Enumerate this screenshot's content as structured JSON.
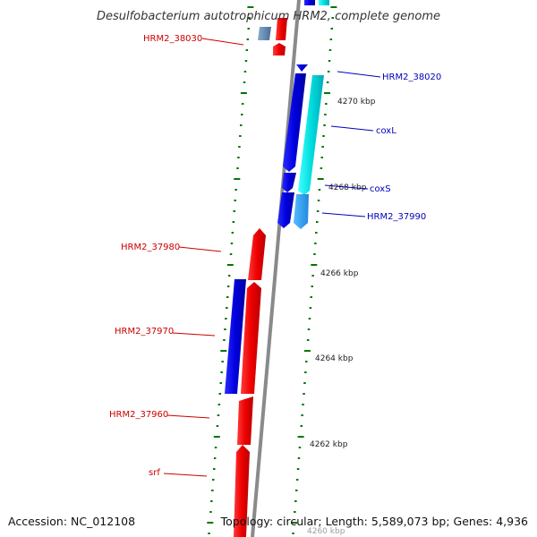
{
  "title": "Desulfobacterium autotrophicum HRM2, complete genome",
  "footer": {
    "accession": "Accession: NC_012108",
    "summary": "Topology: circular; Length: 5,589,073 bp; Genes: 4,936"
  },
  "colors": {
    "reverse_strand": "#ee0000",
    "forward_strand": "#0000dd",
    "forward_alt": "#00dddd",
    "label_reverse": "#cc0000",
    "label_forward": "#0000bb",
    "backbone": "#8a8a8a",
    "tick": "#007700"
  },
  "ticks": [
    {
      "label": "4270 kbp"
    },
    {
      "label": "4268 kbp"
    },
    {
      "label": "4266 kbp"
    },
    {
      "label": "4264 kbp"
    },
    {
      "label": "4262 kbp"
    },
    {
      "label": "4260 kbp"
    }
  ],
  "gene_labels": [
    {
      "text": "HRM2_38030",
      "strand": "reverse"
    },
    {
      "text": "HRM2_38020",
      "strand": "forward"
    },
    {
      "text": "coxL",
      "strand": "forward"
    },
    {
      "text": "coxS",
      "strand": "forward"
    },
    {
      "text": "HRM2_37990",
      "strand": "forward"
    },
    {
      "text": "HRM2_37980",
      "strand": "reverse"
    },
    {
      "text": "HRM2_37970",
      "strand": "reverse"
    },
    {
      "text": "HRM2_37960",
      "strand": "reverse"
    },
    {
      "text": "srf",
      "strand": "reverse"
    }
  ]
}
